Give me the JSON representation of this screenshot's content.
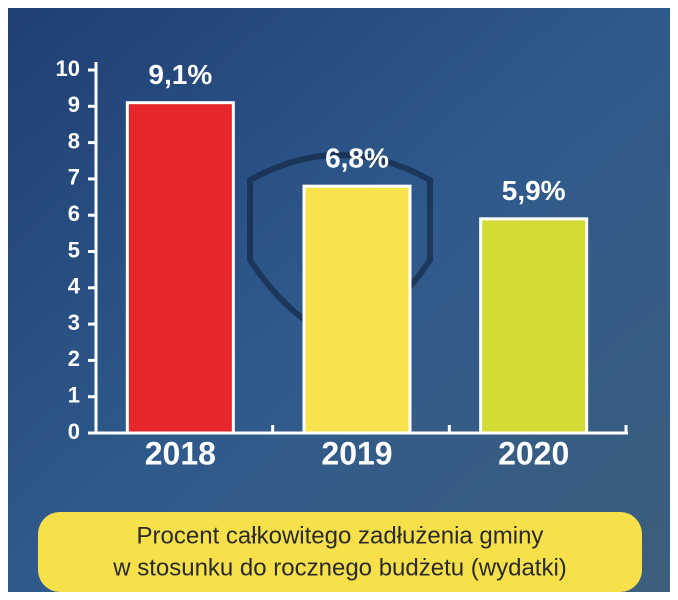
{
  "chart_data": {
    "type": "bar",
    "title": [
      "Procent całkowitego zadłużenia gminy",
      "w stosunku do rocznego budżetu (wydatki)"
    ],
    "categories": [
      "2018",
      "2019",
      "2020"
    ],
    "values": [
      9.1,
      6.8,
      5.9
    ],
    "value_labels": [
      "9,1%",
      "6,8%",
      "5,9%"
    ],
    "colors": [
      "#e5262a",
      "#f8e34f",
      "#d3dc35"
    ],
    "ylim": [
      0,
      10
    ],
    "yticks": [
      0,
      1,
      2,
      3,
      4,
      5,
      6,
      7,
      8,
      9,
      10
    ],
    "grid": false
  }
}
